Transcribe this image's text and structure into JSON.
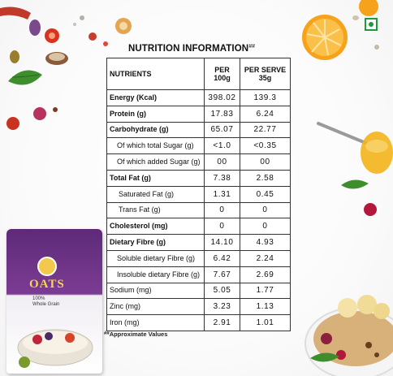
{
  "title": "NUTRITION INFORMATION",
  "title_mark": "##",
  "headers": {
    "nutrients": "NUTRIENTS",
    "per100_line1": "PER",
    "per100_line2": "100g",
    "perserve_line1": "PER SERVE",
    "perserve_line2": "35g"
  },
  "rows": [
    {
      "label": "Energy (Kcal)",
      "per100": "398.02",
      "perserve": "139.3"
    },
    {
      "label": "Protein (g)",
      "per100": "17.83",
      "perserve": "6.24"
    },
    {
      "label": "Carbohydrate (g)",
      "per100": "65.07",
      "perserve": "22.77"
    },
    {
      "label": "Of which total Sugar (g)",
      "per100": "<1.0",
      "perserve": "<0.35"
    },
    {
      "label": "Of which added Sugar (g)",
      "per100": "00",
      "perserve": "00"
    },
    {
      "label": "Total Fat (g)",
      "per100": "7.38",
      "perserve": "2.58"
    },
    {
      "label": "Saturated Fat (g)",
      "per100": "1.31",
      "perserve": "0.45"
    },
    {
      "label": "Trans Fat (g)",
      "per100": "0",
      "perserve": "0"
    },
    {
      "label": "Cholesterol (mg)",
      "per100": "0",
      "perserve": "0"
    },
    {
      "label": "Dietary Fibre (g)",
      "per100": "14.10",
      "perserve": "4.93"
    },
    {
      "label": "Soluble dietary Fibre (g)",
      "per100": "6.42",
      "perserve": "2.24"
    },
    {
      "label": "Insoluble dietary Fibre (g)",
      "per100": "7.67",
      "perserve": "2.69"
    },
    {
      "label": "Sodium (mg)",
      "per100": "5.05",
      "perserve": "1.77"
    },
    {
      "label": "Zinc (mg)",
      "per100": "3.23",
      "perserve": "1.13"
    },
    {
      "label": "Iron (mg)",
      "per100": "2.91",
      "perserve": "1.01"
    }
  ],
  "footnote": {
    "mark": "##",
    "text": "Approximate Values"
  },
  "pack": {
    "brand": "OATS",
    "subtitle_line1": "100%",
    "subtitle_line2": "Whole Grain"
  },
  "colors": {
    "veg_mark": "#1e9a3a",
    "pack_purple": "#5e2a78",
    "orange": "#f7a21b"
  }
}
